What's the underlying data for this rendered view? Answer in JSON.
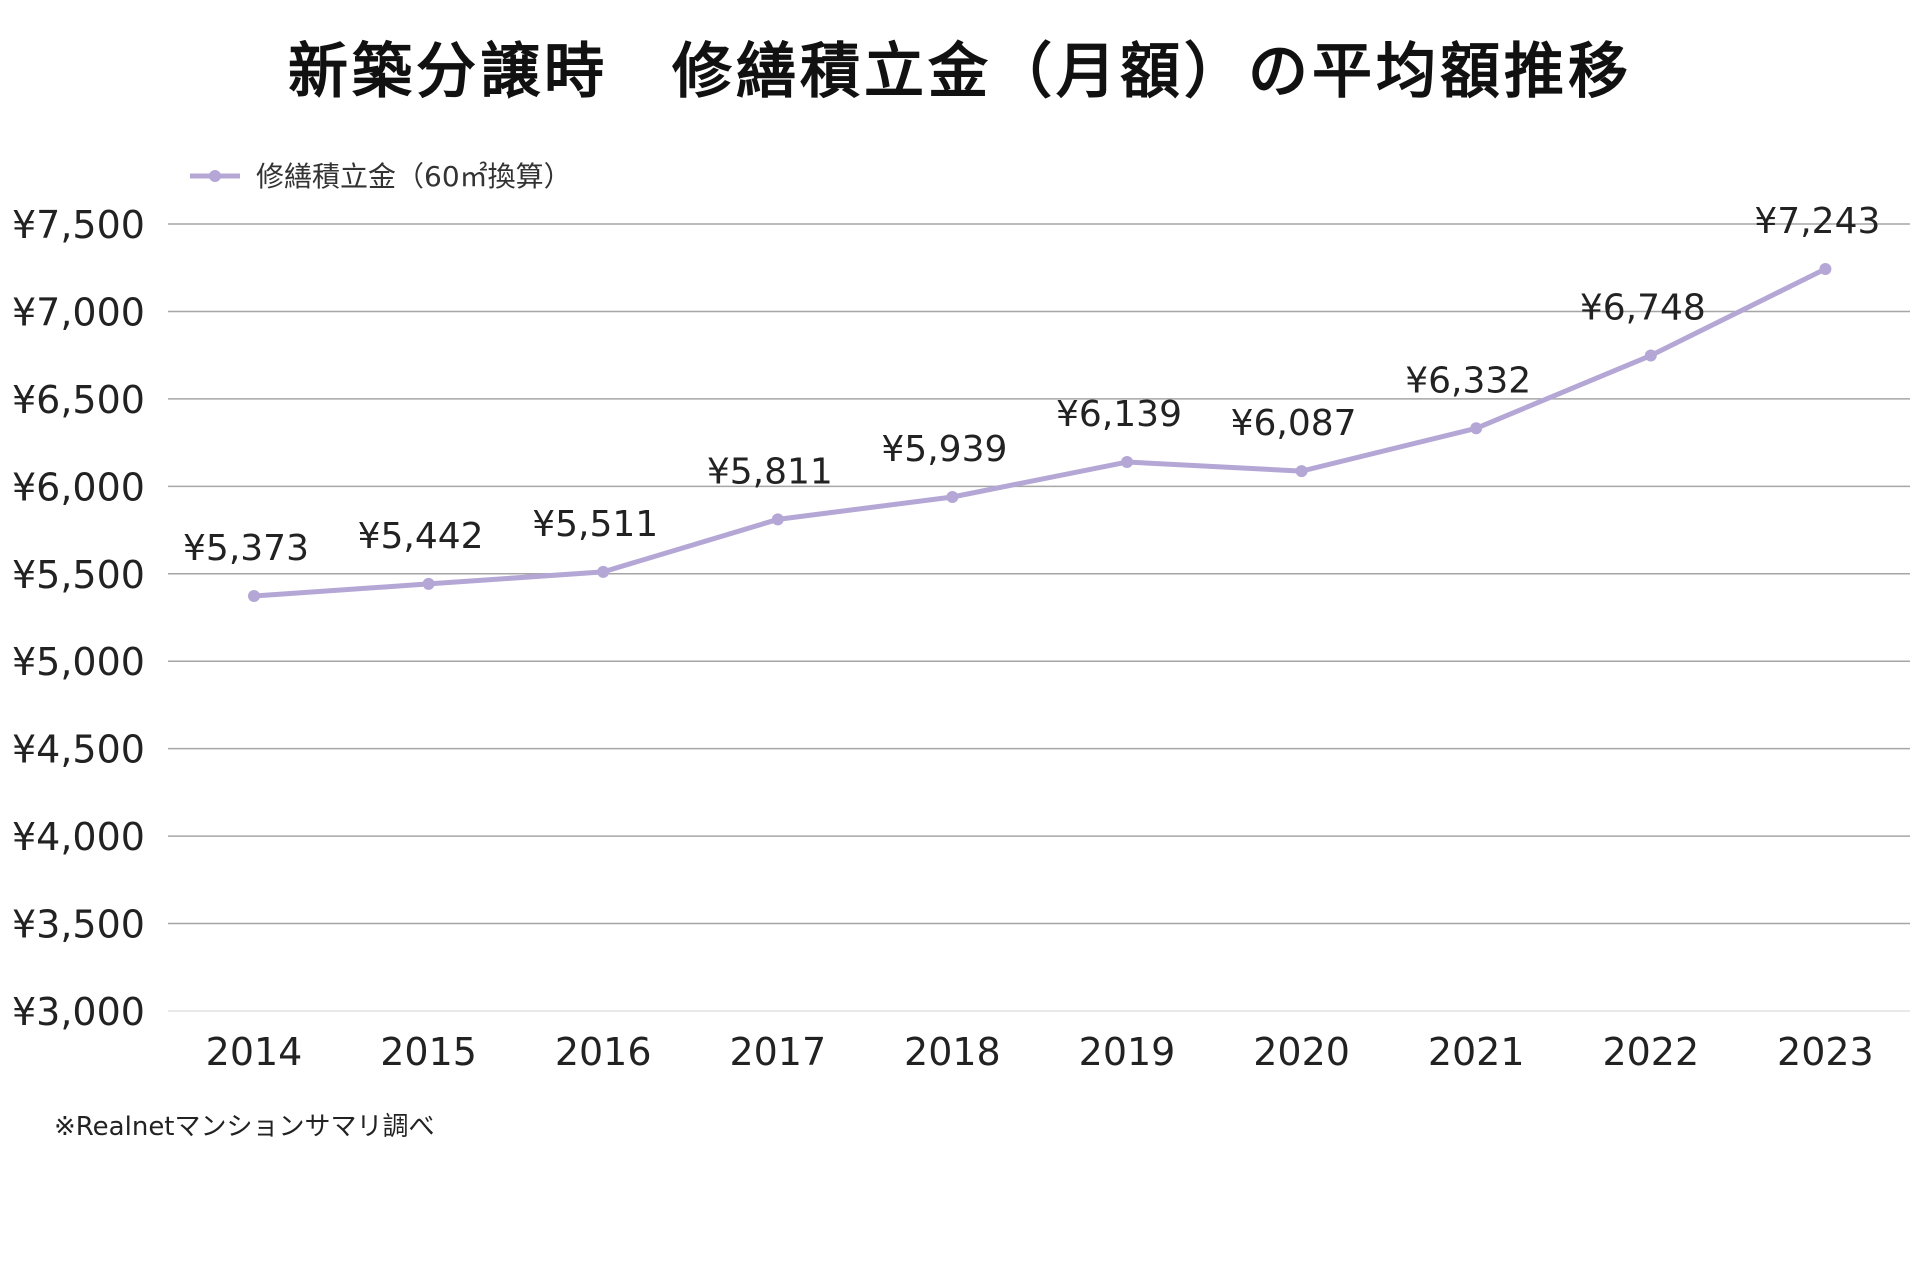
{
  "chart_data": {
    "type": "line",
    "title": "新築分譲時　修繕積立金（月額）の平均額推移",
    "xlabel": "",
    "ylabel": "",
    "categories": [
      "2014",
      "2015",
      "2016",
      "2017",
      "2018",
      "2019",
      "2020",
      "2021",
      "2022",
      "2023"
    ],
    "series": [
      {
        "name": "修繕積立金（60㎡換算）",
        "values": [
          5373,
          5442,
          5511,
          5811,
          5939,
          6139,
          6087,
          6332,
          6748,
          7243
        ],
        "labels": [
          "¥5,373",
          "¥5,442",
          "¥5,511",
          "¥5,811",
          "¥5,939",
          "¥6,139",
          "¥6,087",
          "¥6,332",
          "¥6,748",
          "¥7,243"
        ],
        "color": "#b4a7d6"
      }
    ],
    "ylim": [
      3000,
      7500
    ],
    "yticks": [
      3000,
      3500,
      4000,
      4500,
      5000,
      5500,
      6000,
      6500,
      7000,
      7500
    ],
    "ytick_labels": [
      "¥3,000",
      "¥3,500",
      "¥4,000",
      "¥4,500",
      "¥5,000",
      "¥5,500",
      "¥6,000",
      "¥6,500",
      "¥7,000",
      "¥7,500"
    ],
    "grid": true,
    "legend_position": "top-left",
    "footnote": "※Realnetマンションサマリ調べ"
  }
}
